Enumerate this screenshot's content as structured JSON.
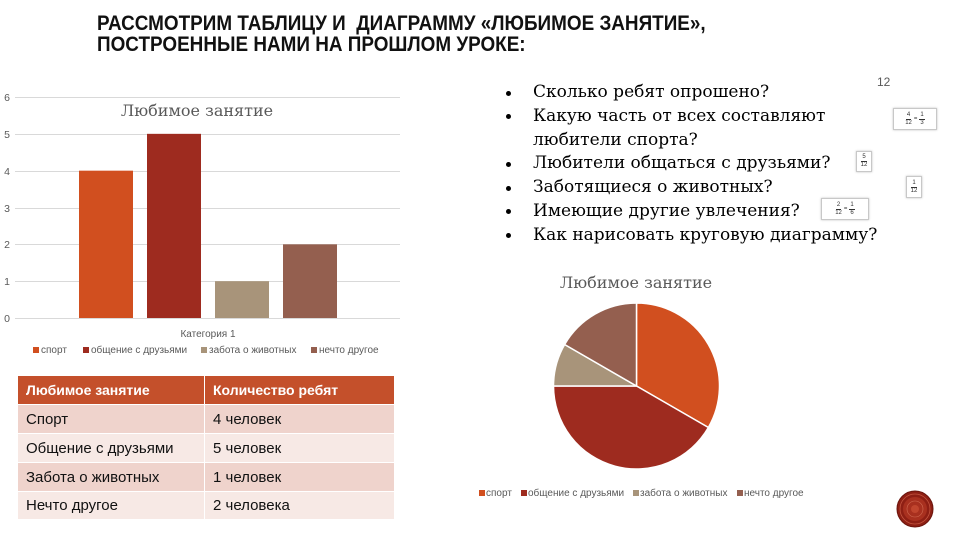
{
  "slide": {
    "title": {
      "line1": "РАССМОТРИМ ТАБЛИЦУ И  ДИАГРАММУ «ЛЮБИМОЕ ЗАНЯТИЕ»,",
      "line2": "ПОСТРОЕННЫЕ НАМИ НА ПРОШЛОМ УРОКЕ:"
    },
    "page_number": "12"
  },
  "questions": [
    "Сколько ребят опрошено?",
    "Какую часть от всех составляют любители спорта?",
    "Любители общаться с друзьями?",
    "Заботящиеся о животных?",
    "Имеющие другие увлечения?",
    "Как нарисовать круговую диаграмму?"
  ],
  "fraction_hints": [
    {
      "left": {
        "num": "4",
        "den": "12"
      },
      "eq": "=",
      "right": {
        "num": "1",
        "den": "3"
      }
    },
    {
      "left": {
        "num": "5",
        "den": "12"
      }
    },
    {
      "left": {
        "num": "1",
        "den": "12"
      }
    },
    {
      "left": {
        "num": "2",
        "den": "12"
      },
      "eq": "=",
      "right": {
        "num": "1",
        "den": "6"
      }
    }
  ],
  "table": {
    "headers": [
      "Любимое занятие",
      "Количество ребят"
    ],
    "rows": [
      [
        "Спорт",
        "4 человек"
      ],
      [
        "Общение с друзьями",
        "5 человек"
      ],
      [
        "Забота о животных",
        "1 человек"
      ],
      [
        "Нечто другое",
        "2 человека"
      ]
    ],
    "colors": {
      "header": "#C4502B",
      "row_odd": "#EFD3CC",
      "row_even": "#F7E9E5"
    }
  },
  "icons": {
    "bullet": "bullet-icon",
    "emblem": "decorative-emblem-icon"
  },
  "chart_data": [
    {
      "type": "bar",
      "title": "Любимое занятие",
      "categories": [
        "Категория 1"
      ],
      "series": [
        {
          "name": "спорт",
          "values": [
            4
          ],
          "color": "#D14F1F"
        },
        {
          "name": "общение с друзьями",
          "values": [
            5
          ],
          "color": "#9E2B1F"
        },
        {
          "name": "забота о животных",
          "values": [
            1
          ],
          "color": "#A8947A"
        },
        {
          "name": "нечто другое",
          "values": [
            2
          ],
          "color": "#945F4F"
        }
      ],
      "ylim": [
        0,
        6
      ],
      "yticks": [
        "0",
        "1",
        "2",
        "3",
        "4",
        "5",
        "6"
      ],
      "grid": true,
      "legend": "bottom"
    },
    {
      "type": "pie",
      "title": "Любимое занятие",
      "labels": [
        "спорт",
        "общение с друзьями",
        "забота о животных",
        "нечто другое"
      ],
      "values": [
        4,
        5,
        1,
        2
      ],
      "colors": [
        "#D14F1F",
        "#9E2B1F",
        "#A8947A",
        "#945F4F"
      ],
      "legend": "bottom"
    }
  ]
}
